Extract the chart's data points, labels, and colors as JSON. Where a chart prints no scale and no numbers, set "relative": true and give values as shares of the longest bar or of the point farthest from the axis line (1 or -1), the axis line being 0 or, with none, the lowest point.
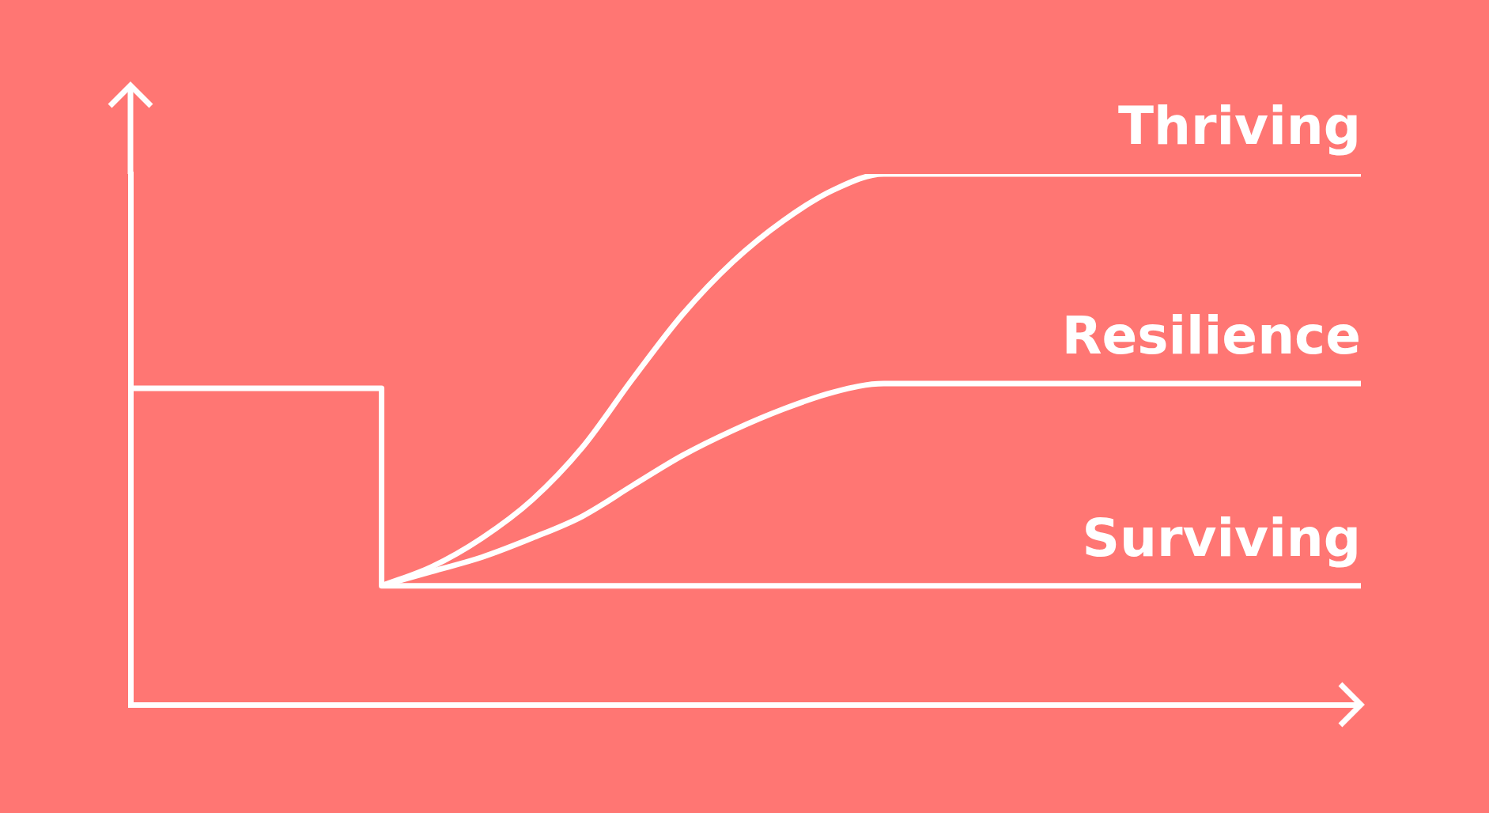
{
  "chart_data": {
    "type": "line",
    "relative": true,
    "tick_labels": false,
    "categories": [
      null,
      null,
      null,
      null,
      null,
      null,
      null,
      null,
      null,
      null,
      null,
      null,
      null,
      null,
      null,
      null,
      null,
      null,
      null,
      null,
      null,
      null,
      null,
      null,
      null,
      null,
      null,
      null,
      null,
      null,
      null,
      null,
      null,
      null,
      null,
      null,
      null,
      null,
      null,
      null,
      null,
      null,
      null,
      null,
      null,
      null,
      null,
      null,
      null,
      null
    ],
    "series": [
      {
        "name": "Thriving",
        "type": "line",
        "color": "#ffffff",
        "values": [
          null,
          null,
          null,
          null,
          null,
          null,
          null,
          null,
          null,
          null,
          0.224,
          null,
          0.26,
          null,
          0.314,
          null,
          0.386,
          null,
          0.485,
          null,
          0.614,
          null,
          0.736,
          null,
          0.835,
          null,
          0.912,
          null,
          0.97,
          null,
          1,
          null,
          null,
          null,
          null,
          null,
          null,
          null,
          null,
          null,
          null,
          null,
          null,
          null,
          null,
          null,
          null,
          null,
          null,
          1
        ]
      },
      {
        "name": "Resilience",
        "type": "line",
        "color": "#ffffff",
        "values": [
          null,
          null,
          null,
          null,
          null,
          null,
          null,
          null,
          null,
          null,
          0.224,
          null,
          0.251,
          null,
          0.278,
          null,
          0.314,
          null,
          0.355,
          null,
          0.413,
          null,
          0.47,
          null,
          0.517,
          null,
          0.557,
          null,
          0.589,
          null,
          0.605,
          null,
          null,
          null,
          null,
          null,
          null,
          null,
          null,
          null,
          null,
          null,
          null,
          null,
          null,
          null,
          null,
          null,
          null,
          0.605
        ]
      },
      {
        "name": "Surviving",
        "type": "step",
        "color": "#ffffff",
        "values": [
          0.596,
          0.596,
          0.596,
          0.596,
          0.596,
          0.596,
          0.596,
          0.596,
          0.596,
          0.596,
          0.224,
          0.224,
          0.224,
          0.224,
          0.224,
          0.224,
          0.224,
          0.224,
          0.224,
          0.224,
          0.224,
          0.224,
          0.224,
          0.224,
          0.224,
          0.224,
          0.224,
          0.224,
          0.224,
          0.224,
          0.224,
          0.224,
          0.224,
          0.224,
          0.224,
          0.224,
          0.224,
          0.224,
          0.224,
          0.224,
          0.224,
          0.224,
          0.224,
          0.224,
          0.224,
          0.224,
          0.224,
          0.224,
          0.224,
          0.224
        ]
      }
    ]
  }
}
